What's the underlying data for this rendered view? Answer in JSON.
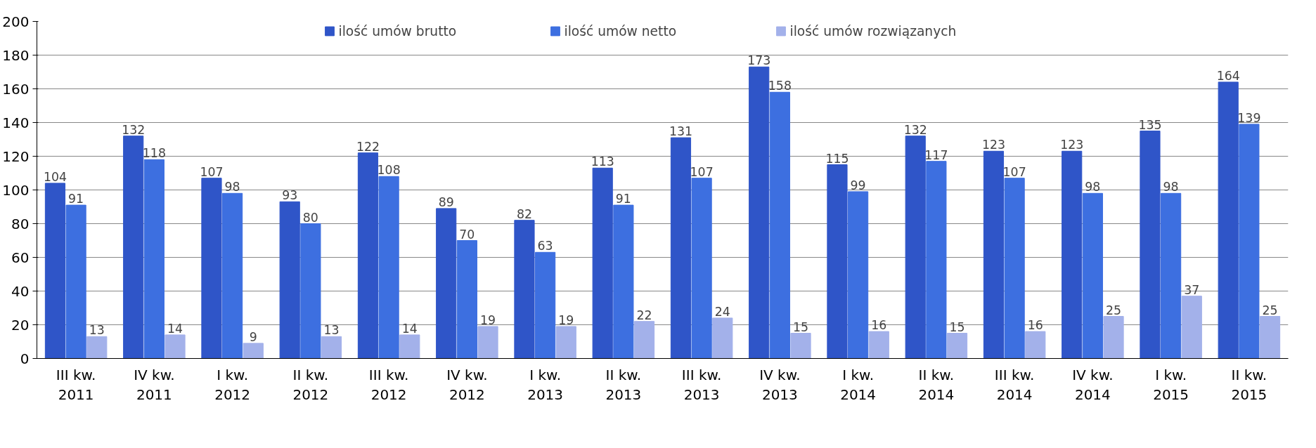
{
  "chart_data": {
    "type": "bar",
    "categories": [
      "III kw.\n2011",
      "IV kw.\n2011",
      "I kw.\n2012",
      "II kw.\n2012",
      "III kw.\n2012",
      "IV kw.\n2012",
      "I kw.\n2013",
      "II kw.\n2013",
      "III kw.\n2013",
      "IV kw.\n2013",
      "I kw.\n2014",
      "II kw.\n2014",
      "III kw.\n2014",
      "IV kw.\n2014",
      "I kw.\n2015",
      "II kw.\n2015"
    ],
    "series": [
      {
        "name": "ilość umów brutto",
        "color": "#2f55c8",
        "values": [
          104,
          132,
          107,
          93,
          122,
          89,
          82,
          113,
          131,
          173,
          115,
          132,
          123,
          123,
          135,
          164
        ]
      },
      {
        "name": "ilość umów netto",
        "color": "#3d6fe0",
        "values": [
          91,
          118,
          98,
          80,
          108,
          70,
          63,
          91,
          107,
          158,
          99,
          117,
          107,
          98,
          98,
          139
        ]
      },
      {
        "name": "ilość umów rozwiązanych",
        "color": "#a3b1ea",
        "values": [
          13,
          14,
          9,
          13,
          14,
          19,
          19,
          22,
          24,
          15,
          16,
          15,
          16,
          25,
          37,
          25
        ]
      }
    ],
    "ylim": [
      0,
      200
    ],
    "yticks": [
      0,
      20,
      40,
      60,
      80,
      100,
      120,
      140,
      160,
      180,
      200
    ],
    "grid": "y",
    "legend": "top",
    "data_labels": true
  }
}
